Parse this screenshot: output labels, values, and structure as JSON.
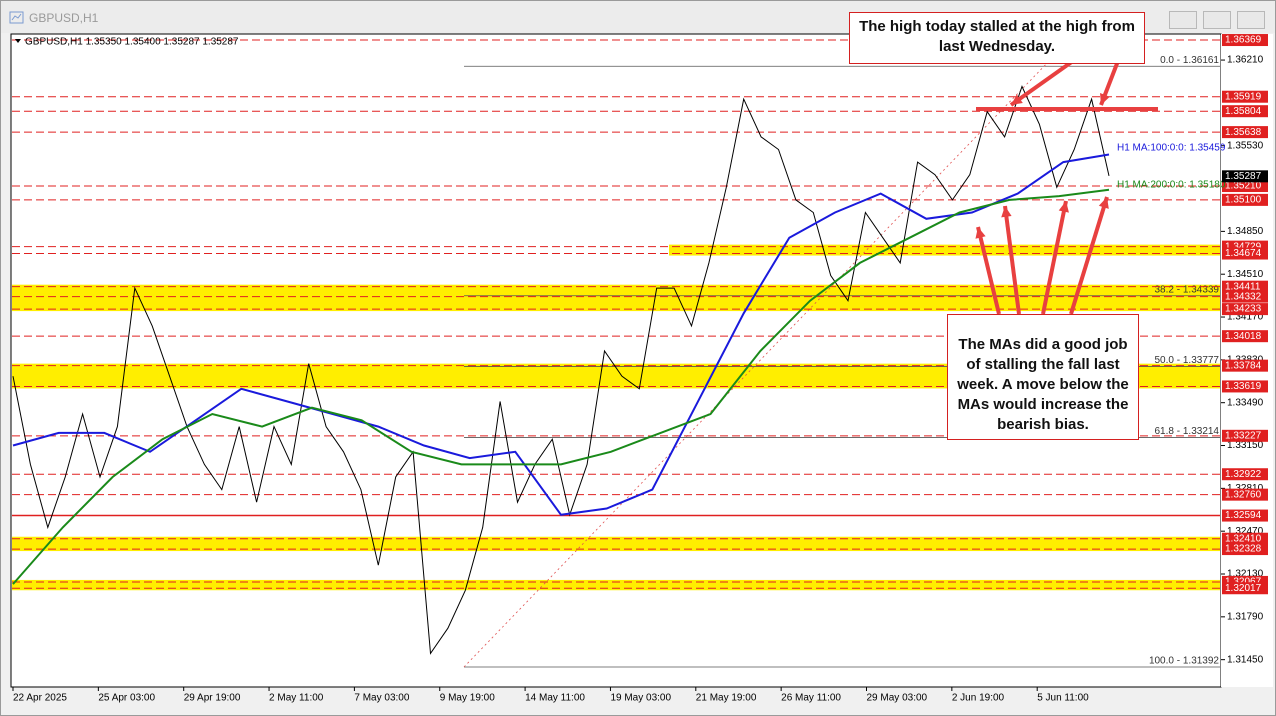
{
  "window": {
    "title": "GBPUSD,H1"
  },
  "chart": {
    "header": "GBPUSD,H1  1.35350 1.35400 1.35287 1.35287",
    "ylim": [
      1.31233,
      1.36401
    ],
    "yticks": [
      "1.36210",
      "1.35530",
      "1.34850",
      "1.34510",
      "1.34170",
      "1.33830",
      "1.33490",
      "1.33150",
      "1.32810",
      "1.32470",
      "1.32130",
      "1.31790",
      "1.31450"
    ],
    "xticks": [
      "22 Apr 2025",
      "25 Apr 03:00",
      "29 Apr 19:00",
      "2 May 11:00",
      "7 May 03:00",
      "9 May 19:00",
      "14 May 11:00",
      "19 May 03:00",
      "21 May 19:00",
      "26 May 11:00",
      "29 May 03:00",
      "2 Jun 19:00",
      "5 Jun 11:00"
    ],
    "levels": [
      {
        "label": "1.36369",
        "value": 1.36369,
        "style": "dashed"
      },
      {
        "label": "1.35919",
        "value": 1.35919,
        "style": "dashed"
      },
      {
        "label": "1.35804",
        "value": 1.35804,
        "style": "dashed"
      },
      {
        "label": "1.35638",
        "value": 1.35638,
        "style": "dashed"
      },
      {
        "label": "1.35210",
        "value": 1.3521,
        "style": "dashed"
      },
      {
        "label": "1.35100",
        "value": 1.351,
        "style": "dashed"
      },
      {
        "label": "1.34729",
        "value": 1.34729,
        "style": "dashed"
      },
      {
        "label": "1.34674",
        "value": 1.34674,
        "style": "dashed"
      },
      {
        "label": "1.34411",
        "value": 1.34411,
        "style": "dashed"
      },
      {
        "label": "1.34332",
        "value": 1.34332,
        "style": "dashed"
      },
      {
        "label": "1.34233",
        "value": 1.34233,
        "style": "dashed"
      },
      {
        "label": "1.34018",
        "value": 1.34018,
        "style": "dashed"
      },
      {
        "label": "1.33784",
        "value": 1.33784,
        "style": "dashed"
      },
      {
        "label": "1.33619",
        "value": 1.33619,
        "style": "dashed"
      },
      {
        "label": "1.33227",
        "value": 1.33227,
        "style": "dashed"
      },
      {
        "label": "1.32922",
        "value": 1.32922,
        "style": "dashed"
      },
      {
        "label": "1.32760",
        "value": 1.3276,
        "style": "dashed"
      },
      {
        "label": "1.32594",
        "value": 1.32594,
        "style": "solid"
      },
      {
        "label": "1.32410",
        "value": 1.3241,
        "style": "dashed"
      },
      {
        "label": "1.32328",
        "value": 1.32328,
        "style": "dashed"
      },
      {
        "label": "1.32067",
        "value": 1.32067,
        "style": "dashed"
      },
      {
        "label": "1.32017",
        "value": 1.32017,
        "style": "dashed"
      }
    ],
    "zones": [
      [
        1.34729,
        1.34674
      ],
      [
        1.34411,
        1.34233
      ],
      [
        1.33784,
        1.33619
      ],
      [
        1.3241,
        1.32328
      ],
      [
        1.32067,
        1.32017
      ]
    ],
    "current": {
      "label": "1.35287",
      "value": 1.35287
    },
    "fib": [
      {
        "label": "0.0 - 1.36161",
        "value": 1.36161
      },
      {
        "label": "38.2 - 1.34339",
        "value": 1.34339
      },
      {
        "label": "50.0 - 1.33777",
        "value": 1.33777
      },
      {
        "label": "61.8 - 1.33214",
        "value": 1.33214
      },
      {
        "label": "100.0 - 1.31392",
        "value": 1.31392
      }
    ],
    "price": [
      1.337,
      1.33,
      1.325,
      1.329,
      1.334,
      1.329,
      1.333,
      1.344,
      1.341,
      1.337,
      1.333,
      1.33,
      1.328,
      1.333,
      1.327,
      1.333,
      1.33,
      1.338,
      1.333,
      1.331,
      1.328,
      1.322,
      1.329,
      1.331,
      1.315,
      1.317,
      1.32,
      1.325,
      1.335,
      1.327,
      1.33,
      1.332,
      1.326,
      1.33,
      1.339,
      1.337,
      1.336,
      1.344,
      1.344,
      1.341,
      1.346,
      1.352,
      1.359,
      1.356,
      1.355,
      1.351,
      1.35,
      1.345,
      1.343,
      1.35,
      1.348,
      1.346,
      1.354,
      1.353,
      1.351,
      1.353,
      1.358,
      1.356,
      1.36,
      1.357,
      1.352,
      1.355,
      1.359,
      1.3529
    ],
    "ma100": {
      "label": "H1 MA:100:0:0: 1.35459",
      "color": "#1a1adc",
      "values": [
        1.3315,
        1.3325,
        1.3325,
        1.331,
        1.3335,
        1.336,
        1.335,
        1.334,
        1.333,
        1.3315,
        1.3305,
        1.331,
        1.326,
        1.3265,
        1.328,
        1.335,
        1.342,
        1.348,
        1.35,
        1.3515,
        1.3495,
        1.35,
        1.3515,
        1.354,
        1.3546
      ]
    },
    "ma200": {
      "label": "H1 MA:200:0:0: 1.35180",
      "color": "#1a8a1a",
      "values": [
        1.3205,
        1.325,
        1.329,
        1.332,
        1.334,
        1.333,
        1.3345,
        1.3335,
        1.331,
        1.33,
        1.33,
        1.33,
        1.331,
        1.3325,
        1.334,
        1.339,
        1.343,
        1.346,
        1.348,
        1.35,
        1.351,
        1.3513,
        1.3518
      ]
    }
  },
  "annotations": [
    "The high today stalled at the high from last Wednesday.",
    "The MAs did a good job of stalling the fall last week. A move below the MAs would increase the bearish bias."
  ]
}
